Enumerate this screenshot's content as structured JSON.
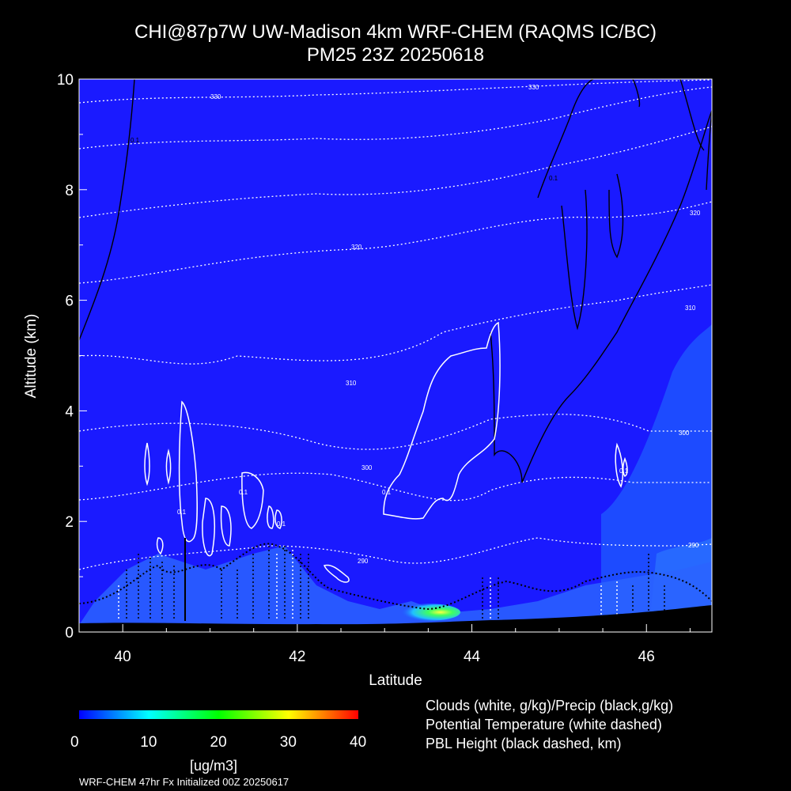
{
  "title": "CHI@87p7W UW-Madison 4km WRF-CHEM (RAQMS IC/BC)",
  "subtitle": "PM25 23Z 20250618",
  "chart_data": {
    "type": "heatmap",
    "xlabel": "Latitude",
    "ylabel": "Altitude (km)",
    "xlim": [
      39.5,
      46.75
    ],
    "ylim": [
      0,
      10
    ],
    "xticks": [
      "40",
      "42",
      "44",
      "46"
    ],
    "yticks": [
      "0",
      "2",
      "4",
      "6",
      "8",
      "10"
    ],
    "field": "PM25",
    "colorbar": {
      "min": 0,
      "max": 40,
      "tick_labels": [
        "0",
        "10",
        "20",
        "30",
        "40"
      ],
      "units": "[ug/m3]",
      "colors": [
        "#0000ff",
        "#00ffff",
        "#00ff00",
        "#ffff00",
        "#ff0000"
      ]
    },
    "background_value": 2,
    "peak": {
      "latitude": 43.7,
      "altitude_km": 0.25,
      "value": 20
    },
    "potential_temperature_contour_labels": [
      "330",
      "330",
      "320",
      "320",
      "310",
      "310",
      "300",
      "300",
      "290",
      "290"
    ],
    "cloud_contour_labels": [
      "0.1",
      "0.1",
      "0.1",
      "0.1",
      "0.1"
    ],
    "precip_contour_labels": [
      "0.1",
      "0.1"
    ],
    "legend": [
      "Clouds (white, g/kg)/Precip (black,g/kg)",
      "Potential Temperature (white dashed)",
      "PBL Height (black dashed, km)"
    ]
  },
  "footer": "WRF-CHEM 47hr  Fx Initialized 00Z 20250617",
  "colors": {
    "background": "#000000",
    "field_base": "#1a1aff",
    "text": "#ffffff"
  }
}
